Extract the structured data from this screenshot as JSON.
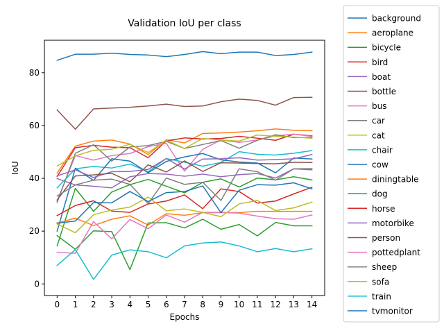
{
  "chart_data": {
    "type": "line",
    "title": "Validation IoU per class",
    "xlabel": "Epochs",
    "ylabel": "IoU",
    "x": [
      0,
      1,
      2,
      3,
      4,
      5,
      6,
      7,
      8,
      9,
      10,
      11,
      12,
      13,
      14
    ],
    "xlim": [
      -0.7,
      14.7
    ],
    "ylim": [
      -4.4,
      92.3
    ],
    "yticks": [
      0,
      20,
      40,
      60,
      80
    ],
    "grid": false,
    "legend_position": "outside-right",
    "series": [
      {
        "name": "background",
        "color": "#1f77b4",
        "values": [
          84.7,
          87.0,
          87.0,
          87.4,
          86.9,
          86.7,
          86.1,
          86.9,
          88.0,
          87.2,
          87.8,
          87.8,
          86.5,
          86.9,
          87.8
        ]
      },
      {
        "name": "aeroplane",
        "color": "#ff7f0e",
        "values": [
          42.0,
          52.2,
          54.1,
          54.5,
          53.0,
          49.0,
          54.6,
          53.4,
          57.0,
          57.2,
          57.5,
          58.0,
          58.7,
          58.2,
          58.0
        ]
      },
      {
        "name": "bicycle",
        "color": "#2ca02c",
        "values": [
          14.4,
          36.2,
          27.5,
          34.8,
          37.6,
          39.6,
          37.0,
          34.5,
          38.5,
          39.8,
          36.7,
          40.1,
          39.4,
          40.6,
          39.4
        ]
      },
      {
        "name": "bird",
        "color": "#d62728",
        "values": [
          40.7,
          51.6,
          52.5,
          51.8,
          51.6,
          47.8,
          54.2,
          55.3,
          54.9,
          55.1,
          55.9,
          55.2,
          54.4,
          56.7,
          56.1
        ]
      },
      {
        "name": "boat",
        "color": "#9467bd",
        "values": [
          39.9,
          37.5,
          37.0,
          36.4,
          40.6,
          41.8,
          41.6,
          40.8,
          41.6,
          40.6,
          41.4,
          41.8,
          40.1,
          43.6,
          43.2
        ]
      },
      {
        "name": "bottle",
        "color": "#8c564b",
        "values": [
          65.9,
          58.6,
          66.3,
          66.6,
          66.9,
          67.4,
          68.1,
          67.2,
          67.4,
          69.0,
          70.0,
          69.5,
          67.7,
          70.6,
          70.7
        ]
      },
      {
        "name": "bus",
        "color": "#e377c2",
        "values": [
          31.4,
          48.6,
          46.9,
          48.6,
          49.4,
          52.0,
          53.2,
          42.7,
          51.0,
          54.5,
          53.6,
          54.5,
          56.1,
          56.7,
          55.9
        ]
      },
      {
        "name": "car",
        "color": "#7f7f7f",
        "values": [
          30.9,
          49.5,
          52.7,
          46.5,
          51.9,
          52.4,
          54.0,
          51.3,
          52.8,
          54.3,
          51.4,
          54.4,
          56.5,
          55.4,
          55.5
        ]
      },
      {
        "name": "cat",
        "color": "#bcbd22",
        "values": [
          44.7,
          48.5,
          50.6,
          51.0,
          52.9,
          49.8,
          54.4,
          51.3,
          55.1,
          54.5,
          54.1,
          56.4,
          55.9,
          55.6,
          55.2
        ]
      },
      {
        "name": "chair",
        "color": "#17becf",
        "values": [
          36.4,
          43.6,
          44.5,
          43.9,
          45.4,
          42.5,
          47.5,
          46.1,
          44.6,
          46.0,
          50.1,
          49.1,
          48.8,
          49.5,
          50.5
        ]
      },
      {
        "name": "cow",
        "color": "#1f77b4",
        "values": [
          20.0,
          43.8,
          39.2,
          47.4,
          46.5,
          42.1,
          46.4,
          48.1,
          49.4,
          47.0,
          46.2,
          45.8,
          42.1,
          47.7,
          47.3
        ]
      },
      {
        "name": "diningtable",
        "color": "#ff7f0e",
        "values": [
          23.1,
          24.9,
          22.1,
          24.5,
          25.8,
          22.3,
          26.6,
          26.0,
          27.0,
          27.0,
          27.0,
          27.5,
          27.5,
          27.5,
          27.5
        ]
      },
      {
        "name": "dog",
        "color": "#2ca02c",
        "values": [
          18.3,
          13.1,
          20.1,
          19.8,
          5.4,
          23.1,
          23.2,
          21.2,
          24.5,
          20.7,
          22.5,
          18.2,
          23.3,
          22.0,
          22.0
        ]
      },
      {
        "name": "horse",
        "color": "#d62728",
        "values": [
          25.9,
          29.7,
          31.5,
          27.6,
          27.1,
          30.3,
          31.4,
          33.7,
          28.5,
          36.0,
          35.0,
          30.6,
          31.4,
          34.1,
          36.6
        ]
      },
      {
        "name": "motorbike",
        "color": "#9467bd",
        "values": [
          40.9,
          43.2,
          40.3,
          42.5,
          42.6,
          43.4,
          47.5,
          43.5,
          47.3,
          47.4,
          47.8,
          46.9,
          47.1,
          47.4,
          49.0
        ]
      },
      {
        "name": "person",
        "color": "#8c564b",
        "values": [
          31.8,
          40.9,
          41.3,
          41.9,
          38.7,
          45.1,
          42.4,
          46.6,
          42.6,
          45.9,
          45.8,
          45.6,
          45.5,
          46.1,
          46.0
        ]
      },
      {
        "name": "pottedplant",
        "color": "#e377c2",
        "values": [
          12.0,
          11.6,
          23.6,
          17.1,
          24.4,
          20.9,
          26.1,
          23.4,
          27.1,
          27.1,
          26.8,
          25.7,
          24.7,
          24.5,
          26.1
        ]
      },
      {
        "name": "sheep",
        "color": "#7f7f7f",
        "values": [
          33.3,
          37.5,
          39.3,
          39.7,
          37.7,
          30.4,
          40.1,
          37.7,
          38.5,
          31.6,
          43.6,
          42.5,
          39.3,
          43.6,
          43.7
        ]
      },
      {
        "name": "sofa",
        "color": "#bcbd22",
        "values": [
          22.7,
          19.4,
          26.2,
          28.0,
          29.1,
          32.9,
          27.7,
          28.4,
          27.1,
          25.5,
          30.3,
          31.6,
          27.8,
          28.8,
          31.0
        ]
      },
      {
        "name": "train",
        "color": "#17becf",
        "values": [
          7.0,
          13.0,
          1.7,
          10.9,
          12.9,
          12.2,
          9.9,
          14.4,
          15.5,
          15.9,
          14.4,
          12.2,
          13.4,
          12.2,
          13.3
        ]
      },
      {
        "name": "tvmonitor",
        "color": "#1f77b4",
        "values": [
          23.0,
          23.8,
          30.8,
          30.7,
          35.0,
          31.2,
          34.6,
          35.0,
          37.1,
          27.0,
          35.5,
          37.6,
          37.4,
          38.3,
          36.0
        ]
      }
    ]
  }
}
